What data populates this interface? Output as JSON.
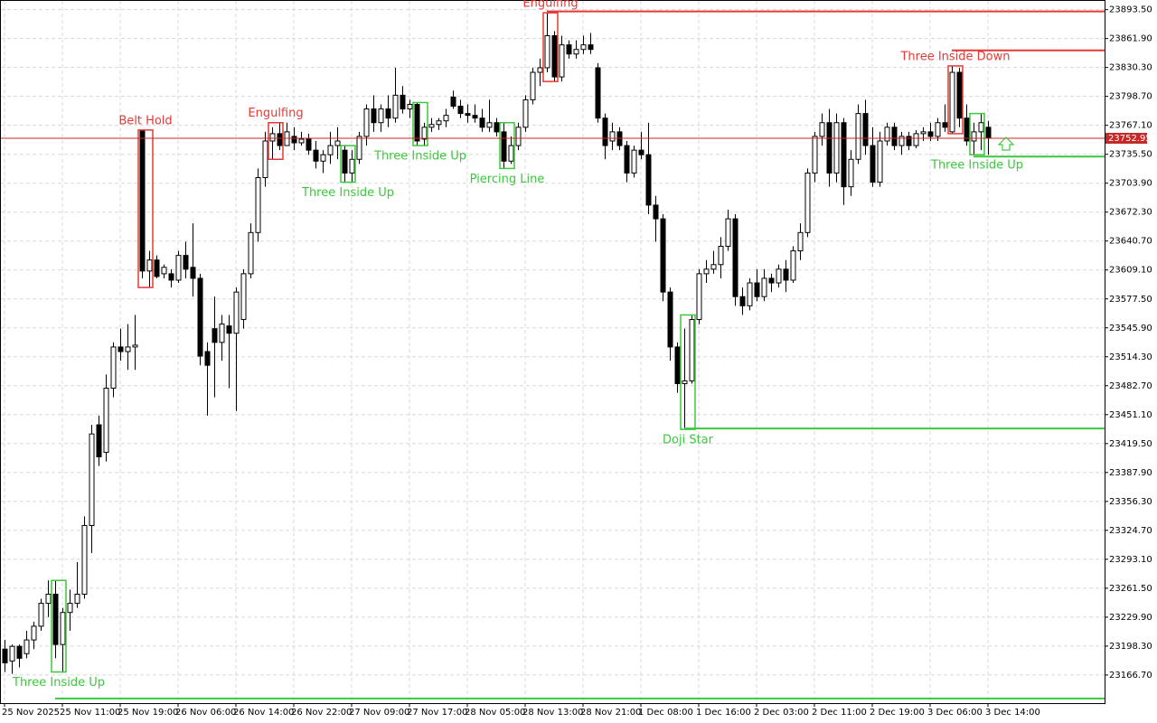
{
  "chart_data": {
    "type": "candlestick",
    "up_color": "#ffffff",
    "down_color": "#000000",
    "grid": true,
    "ylim": [
      23136,
      23904
    ],
    "yticks": [
      {
        "value": 23893.5,
        "label": "23893.50"
      },
      {
        "value": 23861.9,
        "label": "23861.90"
      },
      {
        "value": 23830.3,
        "label": "23830.30"
      },
      {
        "value": 23798.7,
        "label": "23798.70"
      },
      {
        "value": 23767.1,
        "label": "23767.10"
      },
      {
        "value": 23735.5,
        "label": "23735.50"
      },
      {
        "value": 23703.9,
        "label": "23703.90"
      },
      {
        "value": 23672.3,
        "label": "23672.30"
      },
      {
        "value": 23640.7,
        "label": "23640.70"
      },
      {
        "value": 23609.1,
        "label": "23609.10"
      },
      {
        "value": 23577.5,
        "label": "23577.50"
      },
      {
        "value": 23545.9,
        "label": "23545.90"
      },
      {
        "value": 23514.3,
        "label": "23514.30"
      },
      {
        "value": 23482.7,
        "label": "23482.70"
      },
      {
        "value": 23451.1,
        "label": "23451.10"
      },
      {
        "value": 23419.5,
        "label": "23419.50"
      },
      {
        "value": 23387.9,
        "label": "23387.90"
      },
      {
        "value": 23356.3,
        "label": "23356.30"
      },
      {
        "value": 23324.7,
        "label": "23324.70"
      },
      {
        "value": 23293.1,
        "label": "23293.10"
      },
      {
        "value": 23261.5,
        "label": "23261.50"
      },
      {
        "value": 23229.9,
        "label": "23229.90"
      },
      {
        "value": 23198.3,
        "label": "23198.30"
      },
      {
        "value": 23166.7,
        "label": "23166.70"
      }
    ],
    "last_price": 23752.95,
    "last_price_color": "#c62828",
    "categories": [
      "25 Nov 2025",
      null,
      null,
      null,
      null,
      null,
      null,
      null,
      "25 Nov 11:00",
      null,
      null,
      null,
      null,
      null,
      null,
      null,
      "25 Nov 19:00",
      null,
      null,
      null,
      null,
      null,
      null,
      null,
      "26 Nov 06:00",
      null,
      null,
      null,
      null,
      null,
      null,
      null,
      "26 Nov 14:00",
      null,
      null,
      null,
      null,
      null,
      null,
      null,
      "26 Nov 22:00",
      null,
      null,
      null,
      null,
      null,
      null,
      null,
      "27 Nov 09:00",
      null,
      null,
      null,
      null,
      null,
      null,
      null,
      "27 Nov 17:00",
      null,
      null,
      null,
      null,
      null,
      null,
      null,
      "28 Nov 05:00",
      null,
      null,
      null,
      null,
      null,
      null,
      null,
      "28 Nov 13:00",
      null,
      null,
      null,
      null,
      null,
      null,
      null,
      "28 Nov 21:00",
      null,
      null,
      null,
      null,
      null,
      null,
      null,
      "1 Dec 08:00",
      null,
      null,
      null,
      null,
      null,
      null,
      null,
      "1 Dec 16:00",
      null,
      null,
      null,
      null,
      null,
      null,
      null,
      "2 Dec 03:00",
      null,
      null,
      null,
      null,
      null,
      null,
      null,
      "2 Dec 11:00",
      null,
      null,
      null,
      null,
      null,
      null,
      null,
      "2 Dec 19:00",
      null,
      null,
      null,
      null,
      null,
      null,
      null,
      "3 Dec 06:00",
      null,
      null,
      null,
      null,
      null,
      null,
      null,
      "3 Dec 14:00"
    ],
    "open": [
      23195,
      23182,
      23198,
      23190,
      23205,
      23220,
      23245,
      23255,
      23200,
      23235,
      23245,
      23255,
      23330,
      23440,
      23410,
      23480,
      23525,
      23520,
      23525,
      23761,
      23608,
      23620,
      23605,
      23605,
      23598,
      23625,
      23612,
      23600,
      23520,
      23545,
      23530,
      23548,
      23540,
      23555,
      23605,
      23650,
      23710,
      23750,
      23758,
      23745,
      23755,
      23748,
      23752,
      23740,
      23728,
      23735,
      23745,
      23740,
      23715,
      23730,
      23755,
      23785,
      23770,
      23785,
      23775,
      23800,
      23785,
      23790,
      23752,
      23765,
      23768,
      23772,
      23798,
      23788,
      23780,
      23778,
      23775,
      23765,
      23770,
      23760,
      23728,
      23745,
      23765,
      23795,
      23825,
      23830,
      23865,
      23820,
      23855,
      23845,
      23850,
      23855,
      23830,
      23775,
      23750,
      23760,
      23745,
      23715,
      23740,
      23735,
      23680,
      23665,
      23585,
      23525,
      23485,
      23488,
      23555,
      23605,
      23610,
      23615,
      23635,
      23665,
      23580,
      23570,
      23595,
      23580,
      23600,
      23595,
      23610,
      23598,
      23630,
      23650,
      23715,
      23755,
      23770,
      23715,
      23770,
      23700,
      23730,
      23780,
      23745,
      23705,
      23750,
      23765,
      23745,
      23755,
      23745,
      23758,
      23760,
      23755,
      23770,
      23760,
      23825,
      23775,
      23750,
      23760,
      23765
    ],
    "high": [
      23205,
      23200,
      23200,
      23215,
      23225,
      23250,
      23270,
      23270,
      23240,
      23260,
      23290,
      23340,
      23440,
      23450,
      23495,
      23530,
      23545,
      23550,
      23560,
      23762,
      23630,
      23625,
      23615,
      23610,
      23630,
      23640,
      23660,
      23605,
      23530,
      23580,
      23560,
      23560,
      23590,
      23610,
      23660,
      23720,
      23760,
      23765,
      23770,
      23770,
      23765,
      23760,
      23758,
      23750,
      23740,
      23760,
      23765,
      23745,
      23740,
      23760,
      23790,
      23800,
      23790,
      23800,
      23830,
      23810,
      23795,
      23792,
      23770,
      23775,
      23775,
      23785,
      23805,
      23795,
      23790,
      23790,
      23785,
      23795,
      23775,
      23770,
      23755,
      23770,
      23800,
      23830,
      23840,
      23890,
      23870,
      23865,
      23860,
      23860,
      23865,
      23868,
      23835,
      23780,
      23770,
      23765,
      23750,
      23745,
      23760,
      23770,
      23690,
      23670,
      23590,
      23530,
      23545,
      23560,
      23610,
      23620,
      23630,
      23645,
      23675,
      23670,
      23590,
      23600,
      23610,
      23610,
      23605,
      23615,
      23620,
      23635,
      23660,
      23720,
      23760,
      23780,
      23785,
      23780,
      23775,
      23740,
      23790,
      23795,
      23765,
      23760,
      23770,
      23770,
      23760,
      23760,
      23762,
      23765,
      23770,
      23775,
      23790,
      23832,
      23830,
      23790,
      23770,
      23780,
      23772
    ],
    "low": [
      23170,
      23168,
      23175,
      23185,
      23195,
      23215,
      23230,
      23185,
      23170,
      23215,
      23240,
      23250,
      23300,
      23395,
      23400,
      23470,
      23510,
      23500,
      23500,
      23600,
      23590,
      23600,
      23600,
      23590,
      23595,
      23600,
      23580,
      23505,
      23450,
      23470,
      23510,
      23480,
      23455,
      23545,
      23600,
      23640,
      23700,
      23730,
      23740,
      23745,
      23740,
      23745,
      23735,
      23720,
      23715,
      23725,
      23730,
      23705,
      23705,
      23725,
      23745,
      23760,
      23760,
      23765,
      23770,
      23780,
      23775,
      23745,
      23745,
      23760,
      23762,
      23765,
      23785,
      23775,
      23770,
      23770,
      23760,
      23760,
      23755,
      23720,
      23725,
      23740,
      23760,
      23790,
      23810,
      23825,
      23815,
      23815,
      23840,
      23840,
      23845,
      23845,
      23770,
      23730,
      23740,
      23740,
      23705,
      23710,
      23730,
      23670,
      23640,
      23575,
      23510,
      23475,
      23435,
      23485,
      23550,
      23595,
      23605,
      23600,
      23630,
      23570,
      23560,
      23565,
      23575,
      23575,
      23585,
      23590,
      23585,
      23595,
      23620,
      23645,
      23705,
      23745,
      23700,
      23705,
      23680,
      23690,
      23725,
      23735,
      23700,
      23700,
      23745,
      23740,
      23735,
      23740,
      23742,
      23750,
      23750,
      23750,
      23760,
      23758,
      23765,
      23745,
      23735,
      23740,
      23735
    ],
    "close": [
      23180,
      23198,
      23185,
      23205,
      23220,
      23245,
      23255,
      23200,
      23235,
      23245,
      23255,
      23330,
      23430,
      23405,
      23480,
      23525,
      23520,
      23525,
      23527,
      23608,
      23620,
      23602,
      23612,
      23598,
      23625,
      23610,
      23600,
      23515,
      23505,
      23530,
      23550,
      23540,
      23585,
      23605,
      23650,
      23710,
      23750,
      23758,
      23745,
      23760,
      23748,
      23752,
      23740,
      23728,
      23735,
      23745,
      23750,
      23715,
      23730,
      23755,
      23785,
      23770,
      23785,
      23775,
      23800,
      23785,
      23790,
      23750,
      23765,
      23768,
      23772,
      23778,
      23788,
      23780,
      23778,
      23775,
      23765,
      23770,
      23760,
      23728,
      23745,
      23765,
      23795,
      23825,
      23830,
      23865,
      23820,
      23855,
      23845,
      23850,
      23855,
      23850,
      23775,
      23745,
      23760,
      23745,
      23715,
      23740,
      23735,
      23680,
      23665,
      23585,
      23525,
      23485,
      23488,
      23555,
      23605,
      23610,
      23615,
      23635,
      23665,
      23580,
      23570,
      23595,
      23580,
      23600,
      23595,
      23610,
      23598,
      23630,
      23650,
      23715,
      23755,
      23770,
      23715,
      23770,
      23700,
      23730,
      23780,
      23745,
      23705,
      23750,
      23765,
      23745,
      23755,
      23745,
      23758,
      23760,
      23755,
      23770,
      23765,
      23825,
      23775,
      23750,
      23760,
      23770,
      23752.95
    ],
    "annotations": [
      {
        "text": "Three Inside Up",
        "color": "#3cc83c",
        "index": 7,
        "side": "below",
        "level": 23141
      },
      {
        "text": "Belt Hold",
        "color": "#e53935",
        "index": 19,
        "side": "above"
      },
      {
        "text": "Engulfing",
        "color": "#e53935",
        "index": 37,
        "side": "above"
      },
      {
        "text": "Three Inside Up",
        "color": "#3cc83c",
        "index": 47,
        "side": "below"
      },
      {
        "text": "Three Inside Up",
        "color": "#3cc83c",
        "index": 57,
        "side": "below"
      },
      {
        "text": "Piercing Line",
        "color": "#3cc83c",
        "index": 69,
        "side": "below"
      },
      {
        "text": "Engulfing",
        "color": "#e53935",
        "index": 75,
        "side": "above",
        "level": 23891.5
      },
      {
        "text": "Doji Star",
        "color": "#3cc83c",
        "index": 94,
        "side": "below",
        "level": 23436
      },
      {
        "text": "Three Inside Down",
        "color": "#e53935",
        "index": 131,
        "side": "above",
        "level": 23849
      },
      {
        "text": "Three Inside Up",
        "color": "#3cc83c",
        "index": 134,
        "side": "below",
        "level": 23733
      }
    ]
  }
}
